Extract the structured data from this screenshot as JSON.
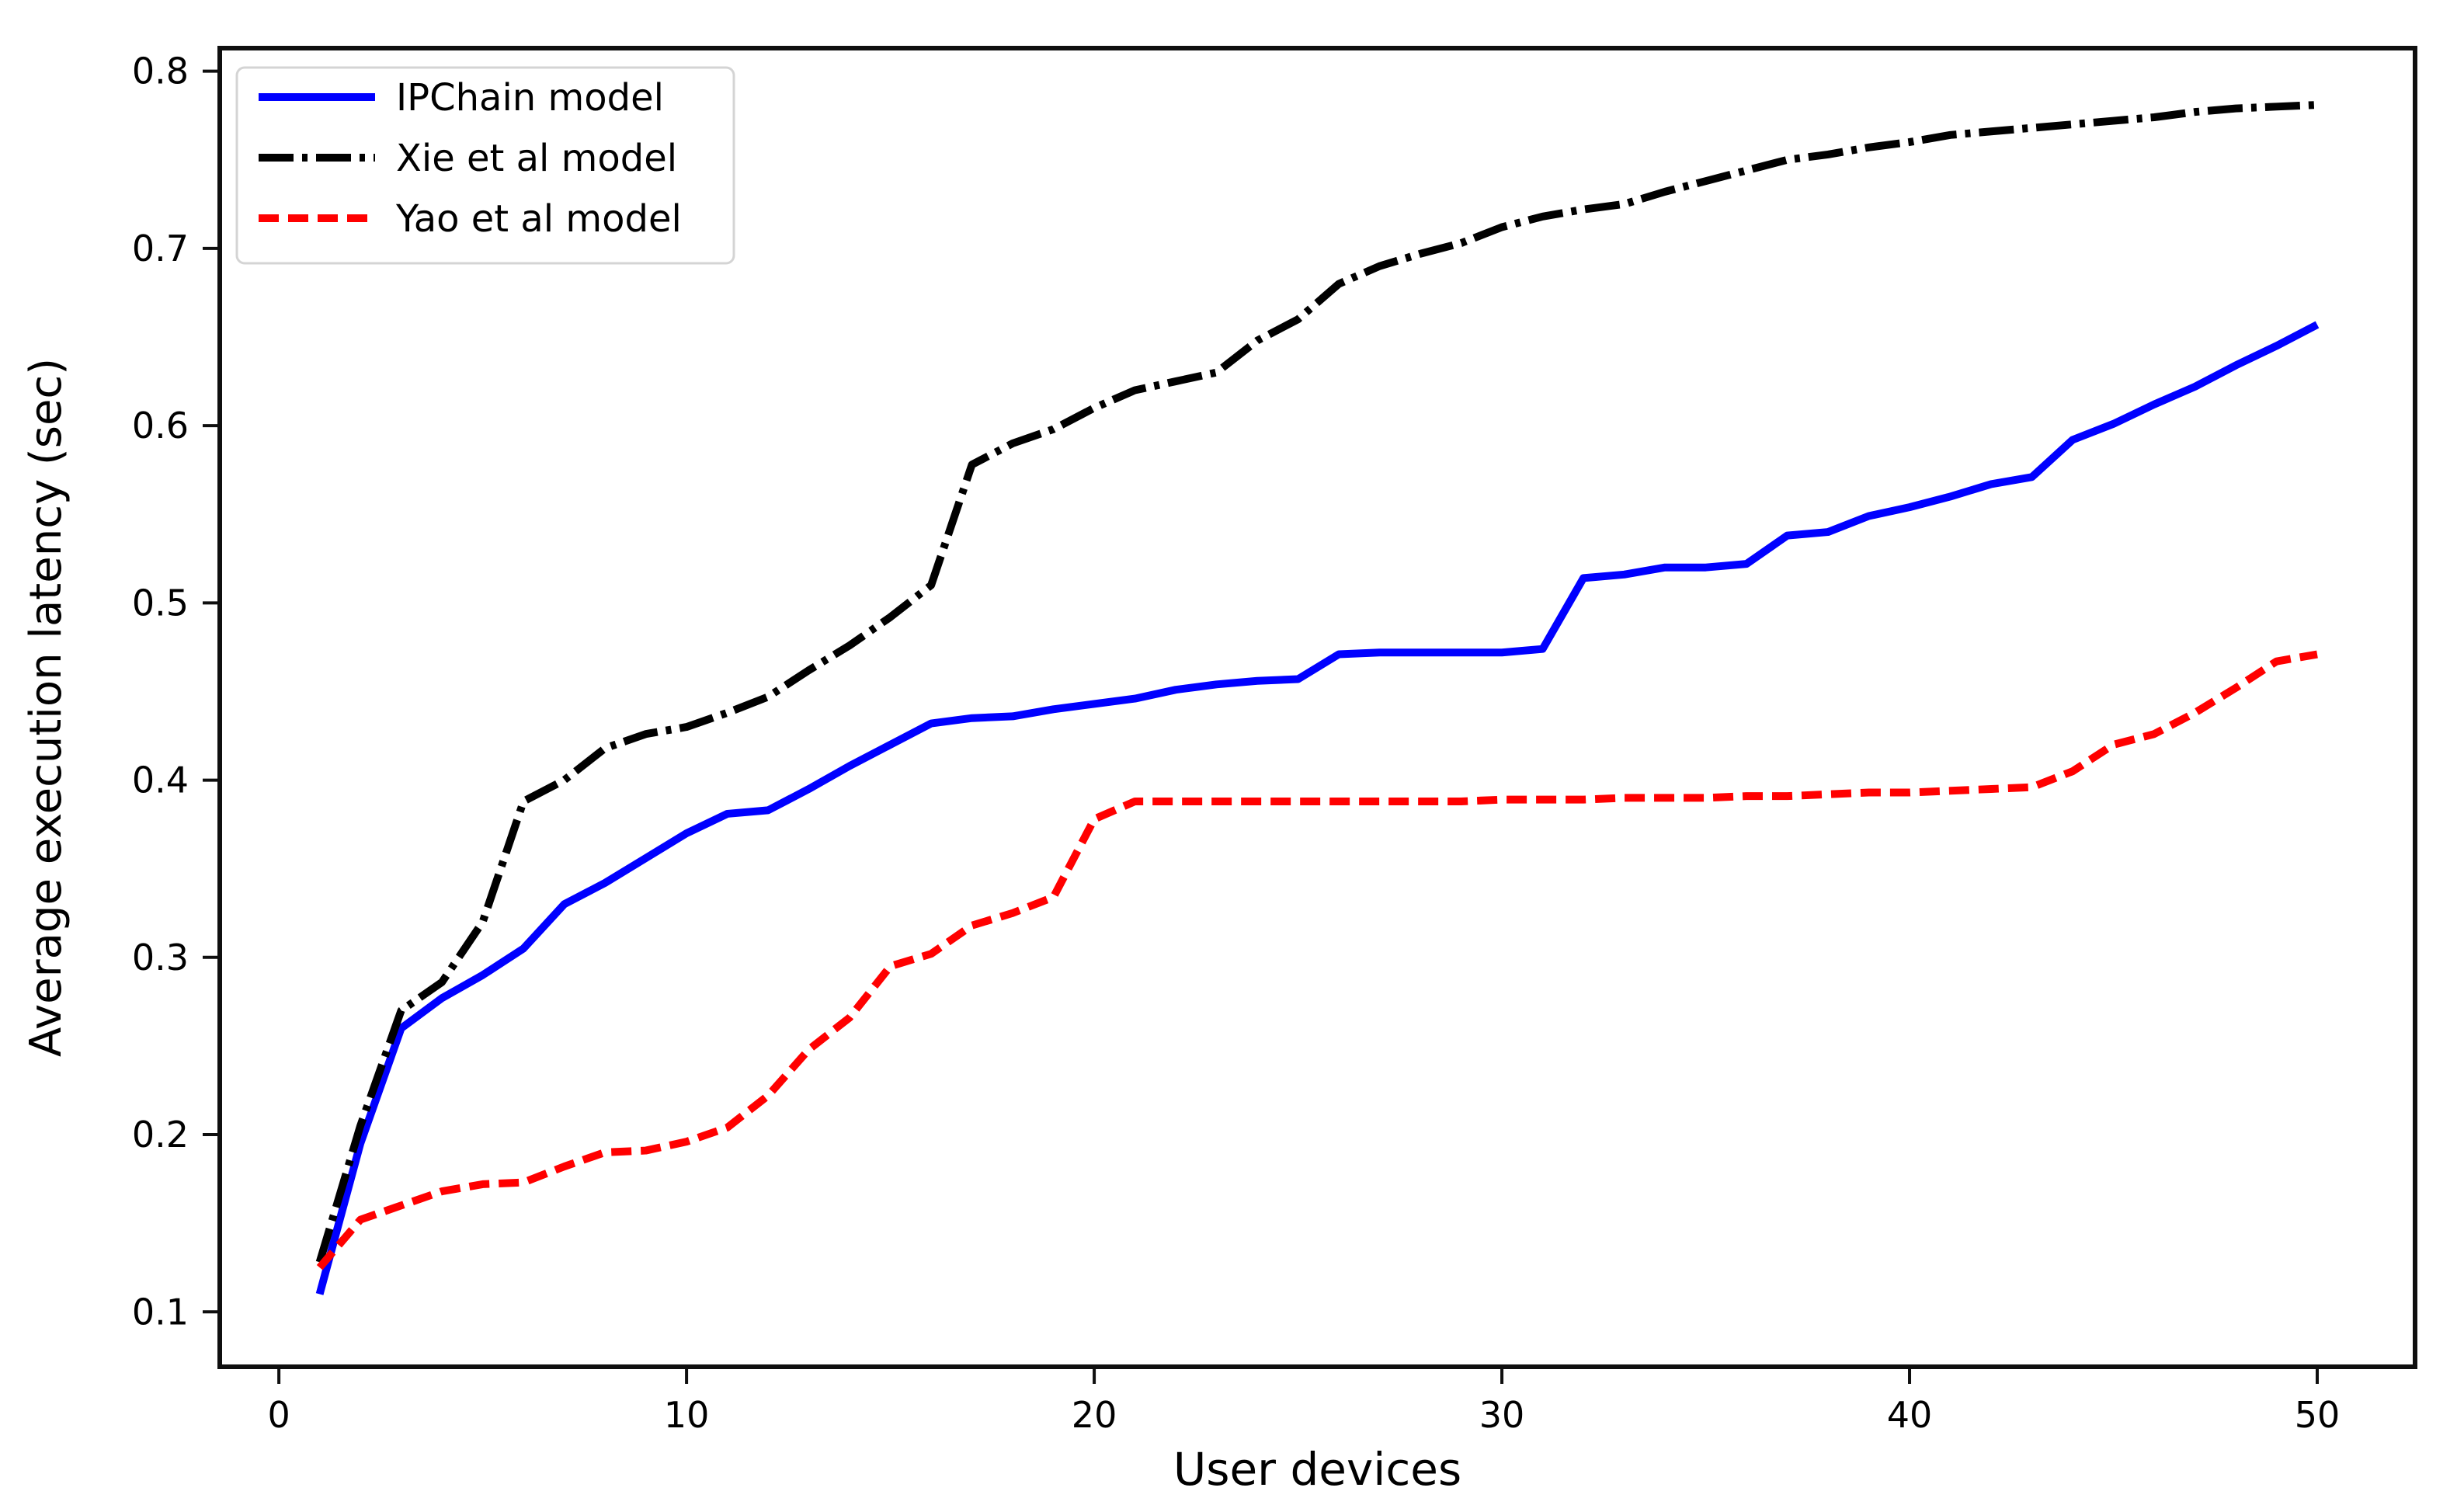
{
  "figure": {
    "background": "#ffffff",
    "spine_color": "#0f0f0f",
    "legend_border_color": "#d4d4d4"
  },
  "chart_data": {
    "type": "line",
    "title": "",
    "xlabel": "User devices",
    "ylabel": "Average execution latency (sec)",
    "xlim": [
      -1.45,
      52.4
    ],
    "ylim": [
      0.069,
      0.813
    ],
    "grid": false,
    "legend_position": "upper left",
    "x_ticks": [
      "0",
      "10",
      "20",
      "30",
      "40",
      "50"
    ],
    "x_tick_values": [
      0,
      10,
      20,
      30,
      40,
      50
    ],
    "y_ticks": [
      "0.1",
      "0.2",
      "0.3",
      "0.4",
      "0.5",
      "0.6",
      "0.7",
      "0.8"
    ],
    "y_tick_values": [
      0.1,
      0.2,
      0.3,
      0.4,
      0.5,
      0.6,
      0.7,
      0.8
    ],
    "x": [
      1,
      2,
      3,
      4,
      5,
      6,
      7,
      8,
      9,
      10,
      11,
      12,
      13,
      14,
      15,
      16,
      17,
      18,
      19,
      20,
      21,
      22,
      23,
      24,
      25,
      26,
      27,
      28,
      29,
      30,
      31,
      32,
      33,
      34,
      35,
      36,
      37,
      38,
      39,
      40,
      41,
      42,
      43,
      44,
      45,
      46,
      47,
      48,
      49,
      50
    ],
    "series": [
      {
        "name": "IPChain model",
        "color": "#0000ff",
        "linestyle": "solid",
        "values": [
          0.11,
          0.195,
          0.26,
          0.277,
          0.29,
          0.305,
          0.33,
          0.342,
          0.356,
          0.37,
          0.381,
          0.383,
          0.395,
          0.408,
          0.42,
          0.432,
          0.435,
          0.436,
          0.44,
          0.443,
          0.446,
          0.451,
          0.454,
          0.456,
          0.457,
          0.471,
          0.472,
          0.472,
          0.472,
          0.472,
          0.474,
          0.514,
          0.516,
          0.52,
          0.52,
          0.522,
          0.538,
          0.54,
          0.549,
          0.554,
          0.56,
          0.567,
          0.571,
          0.592,
          0.601,
          0.612,
          0.622,
          0.634,
          0.645,
          0.657
        ]
      },
      {
        "name": "Xie et al model",
        "color": "#000000",
        "linestyle": "dashdot",
        "values": [
          0.128,
          0.205,
          0.27,
          0.286,
          0.32,
          0.388,
          0.4,
          0.418,
          0.426,
          0.43,
          0.438,
          0.447,
          0.462,
          0.476,
          0.492,
          0.51,
          0.578,
          0.59,
          0.598,
          0.61,
          0.62,
          0.625,
          0.63,
          0.648,
          0.66,
          0.68,
          0.69,
          0.697,
          0.703,
          0.712,
          0.718,
          0.722,
          0.725,
          0.732,
          0.738,
          0.744,
          0.75,
          0.753,
          0.757,
          0.76,
          0.764,
          0.766,
          0.768,
          0.77,
          0.772,
          0.774,
          0.777,
          0.779,
          0.78,
          0.781
        ]
      },
      {
        "name": "Yao et al model",
        "color": "#ff0000",
        "linestyle": "dashed",
        "values": [
          0.125,
          0.152,
          0.16,
          0.168,
          0.172,
          0.173,
          0.182,
          0.19,
          0.191,
          0.196,
          0.204,
          0.222,
          0.248,
          0.266,
          0.295,
          0.302,
          0.318,
          0.325,
          0.334,
          0.378,
          0.388,
          0.388,
          0.388,
          0.388,
          0.388,
          0.388,
          0.388,
          0.388,
          0.388,
          0.389,
          0.389,
          0.389,
          0.39,
          0.39,
          0.39,
          0.391,
          0.391,
          0.392,
          0.393,
          0.393,
          0.394,
          0.395,
          0.396,
          0.405,
          0.42,
          0.426,
          0.438,
          0.452,
          0.467,
          0.471
        ]
      }
    ]
  }
}
